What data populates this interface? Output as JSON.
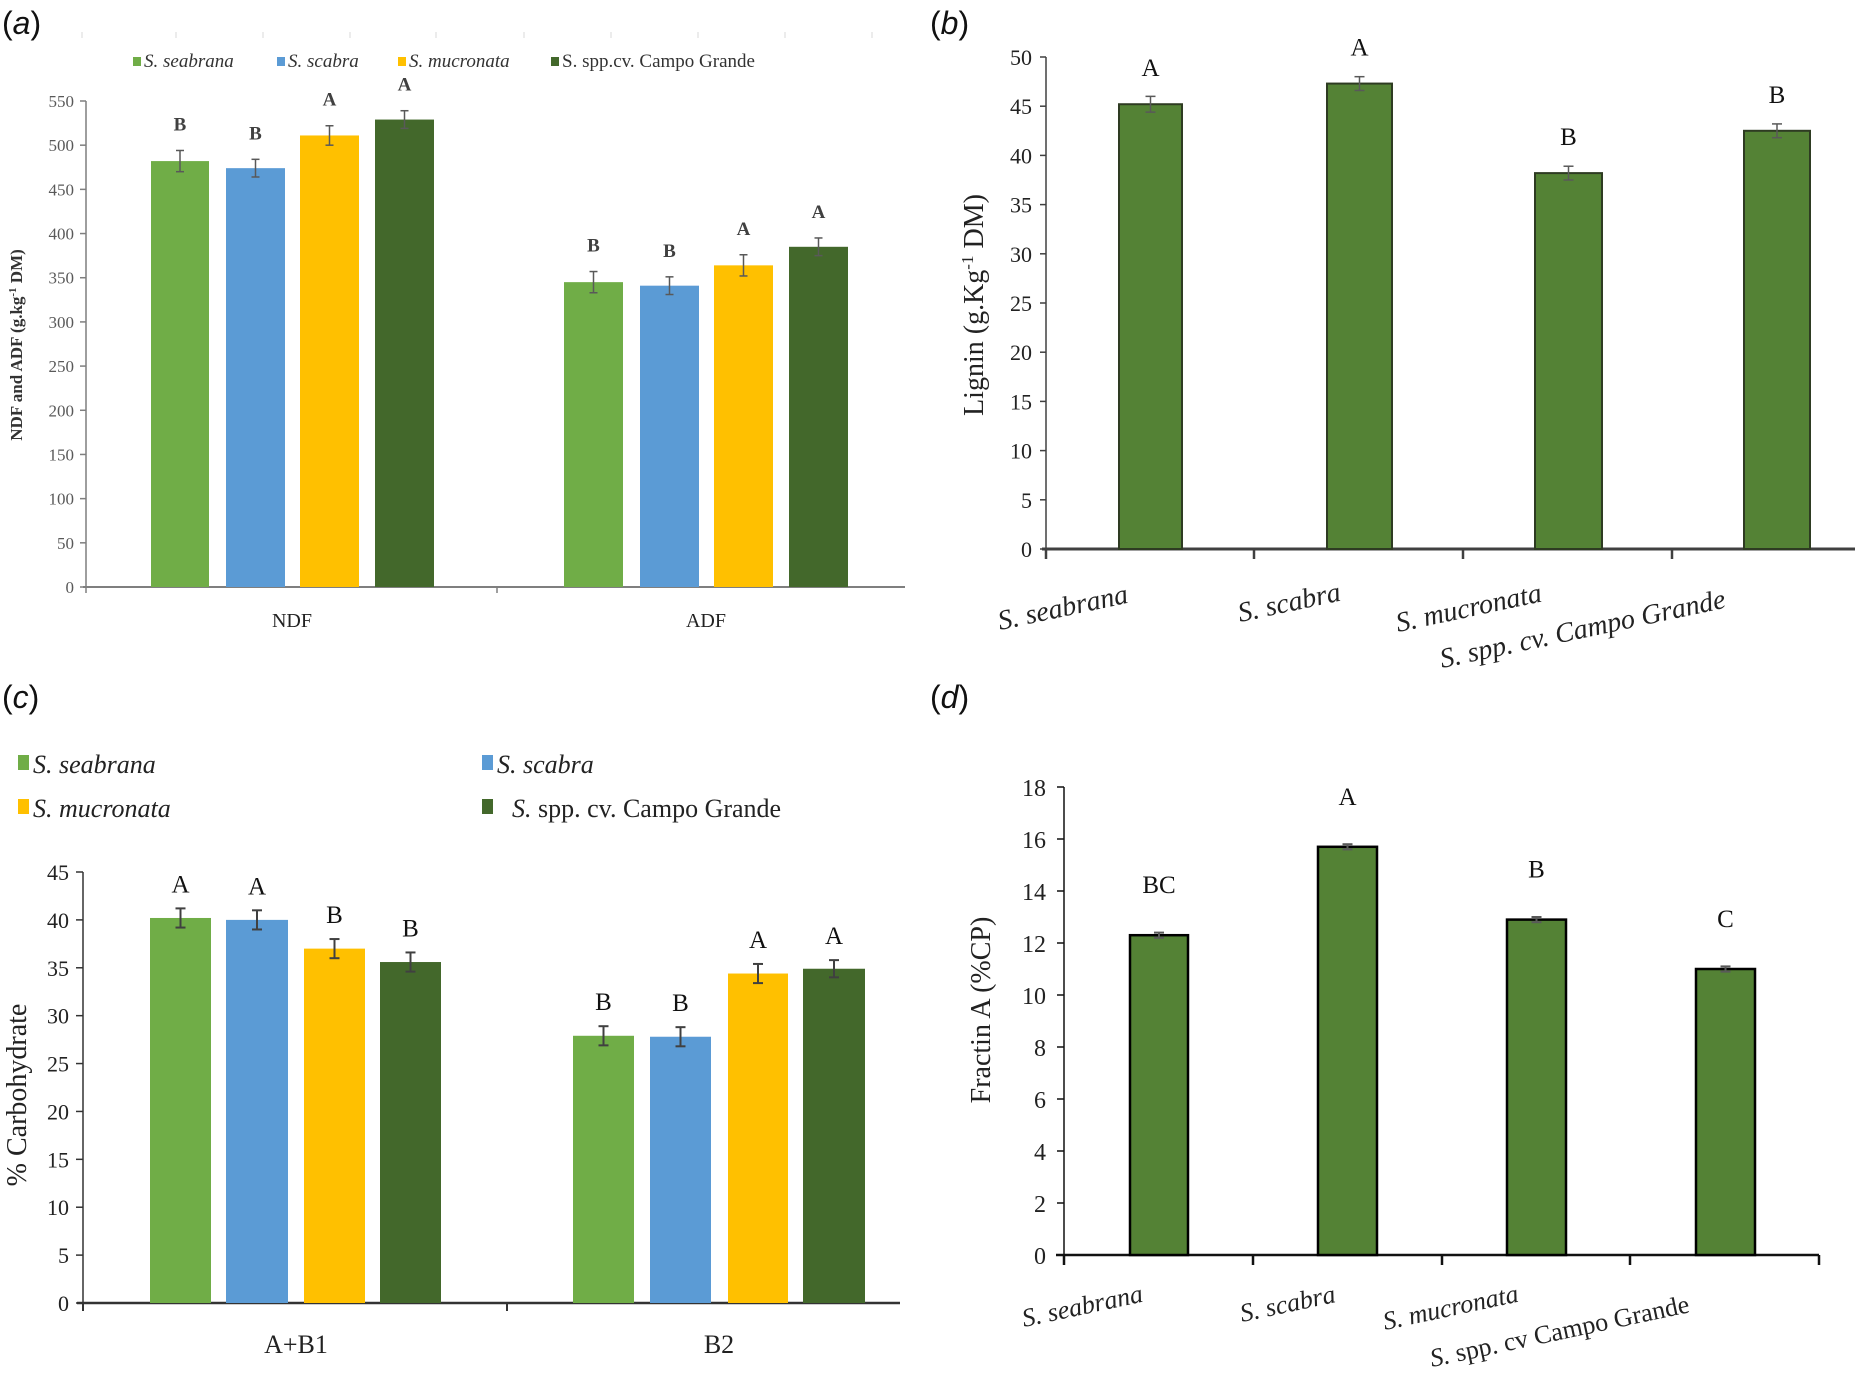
{
  "figure": {
    "panels": {
      "a": {
        "label": "a"
      },
      "b": {
        "label": "b"
      },
      "c": {
        "label": "c"
      },
      "d": {
        "label": "d"
      }
    }
  },
  "legend_species": [
    {
      "genus": "S.",
      "name": "seabrana",
      "color": "#70AD47"
    },
    {
      "genus": "S.",
      "name": "scabra",
      "color": "#5B9BD5"
    },
    {
      "genus": "S.",
      "name": "mucronata",
      "color": "#FFC000"
    },
    {
      "genus": "S.",
      "name": "spp.cv. Campo Grande",
      "color": "#43682B"
    }
  ],
  "legend_c": [
    {
      "genus": "S.",
      "name": "seabrana",
      "color": "#70AD47",
      "italic": true
    },
    {
      "genus": "S.",
      "name": "scabra",
      "color": "#5B9BD5",
      "italic": true
    },
    {
      "genus": "S.",
      "name": "mucronata",
      "color": "#FFC000",
      "italic": true
    },
    {
      "genus": "S.",
      "name": " spp. cv. Campo Grande",
      "color": "#43682B",
      "italic": false
    }
  ],
  "chart_data": [
    {
      "id": "a",
      "type": "bar",
      "title": "",
      "xlabel": "",
      "ylabel": "NDF and ADF  (g.kg",
      "ylabel_sup": "-1",
      "ylabel_tail": " DM)",
      "ylim": [
        0,
        550
      ],
      "yticks": [
        0,
        50,
        100,
        150,
        200,
        250,
        300,
        350,
        400,
        450,
        500,
        550
      ],
      "categories": [
        "NDF",
        "ADF"
      ],
      "legend_position": "top",
      "grid": false,
      "series": [
        {
          "name": "S. seabrana",
          "color": "#70AD47",
          "values": [
            482,
            345
          ],
          "errors": [
            12,
            12
          ],
          "letters": [
            "B",
            "B"
          ]
        },
        {
          "name": "S. scabra",
          "color": "#5B9BD5",
          "values": [
            474,
            341
          ],
          "errors": [
            10,
            10
          ],
          "letters": [
            "B",
            "B"
          ]
        },
        {
          "name": "S. mucronata",
          "color": "#FFC000",
          "values": [
            511,
            364
          ],
          "errors": [
            11,
            12
          ],
          "letters": [
            "A",
            "A"
          ]
        },
        {
          "name": "S. spp.cv. Campo Grande",
          "color": "#43682B",
          "values": [
            529,
            385
          ],
          "errors": [
            10,
            10
          ],
          "letters": [
            "A",
            "A"
          ]
        }
      ]
    },
    {
      "id": "b",
      "type": "bar",
      "title": "",
      "xlabel": "",
      "ylabel": "Lignin (g.Kg",
      "ylabel_sup": "-1",
      "ylabel_tail": " DM)",
      "ylim": [
        0,
        50
      ],
      "yticks": [
        0,
        5,
        10,
        15,
        20,
        25,
        30,
        35,
        40,
        45,
        50
      ],
      "categories": [
        "S. seabrana",
        "S. scabra",
        "S. mucronata",
        "S. spp. cv. Campo Grande"
      ],
      "values": [
        45.2,
        47.3,
        38.2,
        42.5
      ],
      "errors": [
        0.8,
        0.7,
        0.7,
        0.7
      ],
      "letters": [
        "A",
        "A",
        "B",
        "B"
      ],
      "color": "#548235",
      "grid": false
    },
    {
      "id": "c",
      "type": "bar",
      "title": "",
      "xlabel": "",
      "ylabel": "% Carbohydrate",
      "ylim": [
        0,
        45
      ],
      "yticks": [
        0,
        5,
        10,
        15,
        20,
        25,
        30,
        35,
        40,
        45
      ],
      "categories": [
        "A+B1",
        "B2"
      ],
      "legend_position": "top-left",
      "grid": false,
      "series": [
        {
          "name": "S. seabrana",
          "color": "#70AD47",
          "values": [
            40.2,
            27.9
          ],
          "errors": [
            1.0,
            1.0
          ],
          "letters": [
            "A",
            "B"
          ]
        },
        {
          "name": "S. scabra",
          "color": "#5B9BD5",
          "values": [
            40.0,
            27.8
          ],
          "errors": [
            1.0,
            1.0
          ],
          "letters": [
            "A",
            "B"
          ]
        },
        {
          "name": "S. mucronata",
          "color": "#FFC000",
          "values": [
            37.0,
            34.4
          ],
          "errors": [
            1.0,
            1.0
          ],
          "letters": [
            "B",
            "A"
          ]
        },
        {
          "name": "S. spp. cv. Campo Grande",
          "color": "#43682B",
          "values": [
            35.6,
            34.9
          ],
          "errors": [
            1.0,
            0.9
          ],
          "letters": [
            "B",
            "A"
          ]
        }
      ]
    },
    {
      "id": "d",
      "type": "bar",
      "title": "",
      "xlabel": "",
      "ylabel": "Fractin  A (%CP)",
      "ylim": [
        0,
        18
      ],
      "yticks": [
        0,
        2,
        4,
        6,
        8,
        10,
        12,
        14,
        16,
        18
      ],
      "categories": [
        "S. seabrana",
        "S. scabra",
        "S. mucronata",
        "S. spp. cv Campo Grande"
      ],
      "values": [
        12.3,
        15.7,
        12.9,
        11.0
      ],
      "errors": [
        0.1,
        0.1,
        0.1,
        0.1
      ],
      "letters": [
        "BC",
        "A",
        "B",
        "C"
      ],
      "color": "#548235",
      "grid": false
    }
  ]
}
